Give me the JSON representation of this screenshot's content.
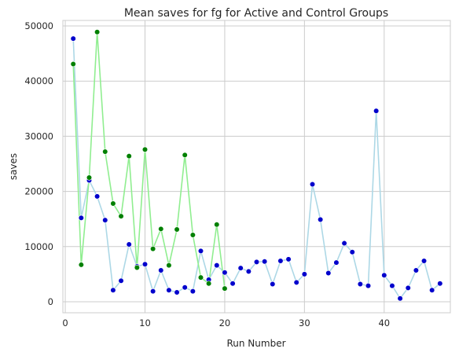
{
  "chart_data": {
    "type": "line",
    "title": "Mean saves for fg for Active and Control Groups",
    "xlabel": "Run Number",
    "ylabel": "saves",
    "xlim": [
      -0.3,
      48.3
    ],
    "ylim": [
      -2000,
      51000
    ],
    "xticks": [
      0,
      10,
      20,
      30,
      40
    ],
    "yticks": [
      0,
      10000,
      20000,
      30000,
      40000,
      50000
    ],
    "grid": true,
    "legend": "none",
    "series": [
      {
        "line_color": "#add8e6",
        "marker_color": "#0000cc",
        "x": [
          1,
          2,
          3,
          4,
          5,
          6,
          7,
          8,
          9,
          10,
          11,
          12,
          13,
          14,
          15,
          16,
          17,
          18,
          19,
          20,
          21,
          22,
          23,
          24,
          25,
          26,
          27,
          28,
          29,
          30,
          31,
          32,
          33,
          34,
          35,
          36,
          37,
          38,
          39,
          40,
          41,
          42,
          43,
          44,
          45,
          46,
          47
        ],
        "y": [
          47700,
          15200,
          22000,
          19100,
          14800,
          2100,
          3800,
          10400,
          6400,
          6800,
          1900,
          5700,
          2100,
          1700,
          2600,
          1900,
          9200,
          4000,
          6600,
          5300,
          3300,
          6100,
          5500,
          7200,
          7300,
          3200,
          7400,
          7700,
          3500,
          5000,
          21300,
          14900,
          5200,
          7100,
          10600,
          9000,
          3200,
          2900,
          34600,
          4800,
          2900,
          600,
          2500,
          5700,
          7400,
          2100,
          3300
        ]
      },
      {
        "line_color": "#90ee90",
        "marker_color": "#008000",
        "x": [
          1,
          2,
          3,
          4,
          5,
          6,
          7,
          8,
          9,
          10,
          11,
          12,
          13,
          14,
          15,
          16,
          17,
          18,
          19,
          20
        ],
        "y": [
          43100,
          6700,
          22500,
          48900,
          27200,
          17800,
          15500,
          26400,
          6200,
          27600,
          9600,
          13200,
          6600,
          13100,
          26600,
          12100,
          4400,
          3300,
          14000,
          2400
        ]
      }
    ]
  }
}
